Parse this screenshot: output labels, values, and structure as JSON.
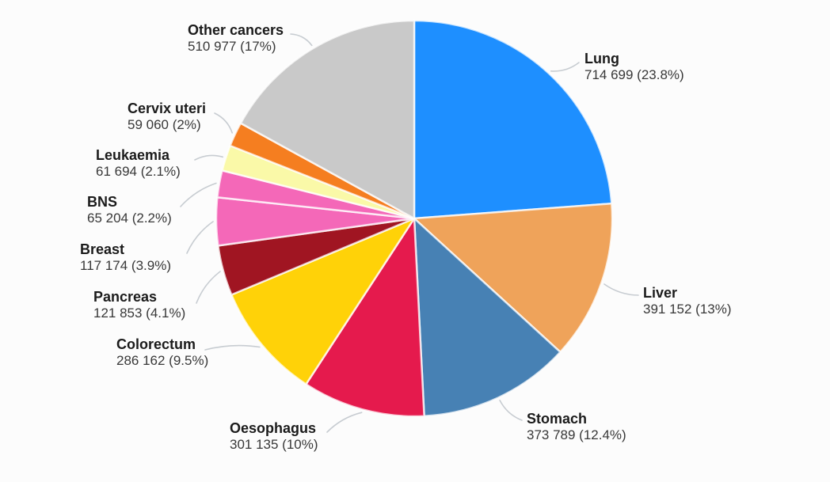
{
  "chart_data": {
    "type": "pie",
    "title": "",
    "start_angle_deg": 0,
    "direction": "clockwise",
    "legend_position": "none",
    "label_format": "name newline count (percent)",
    "slices": [
      {
        "id": "lung",
        "label": "Lung",
        "count": "714 699",
        "pct_display": "23.8%",
        "percent": 23.8,
        "color": "#1E8FFF"
      },
      {
        "id": "liver",
        "label": "Liver",
        "count": "391 152",
        "pct_display": "13%",
        "percent": 13.0,
        "color": "#EFA35A"
      },
      {
        "id": "stomach",
        "label": "Stomach",
        "count": "373 789",
        "pct_display": "12.4%",
        "percent": 12.4,
        "color": "#4781B4"
      },
      {
        "id": "oesophagus",
        "label": "Oesophagus",
        "count": "301 135",
        "pct_display": "10%",
        "percent": 10.0,
        "color": "#E51A4D"
      },
      {
        "id": "colorectum",
        "label": "Colorectum",
        "count": "286 162",
        "pct_display": "9.5%",
        "percent": 9.5,
        "color": "#FFD208"
      },
      {
        "id": "pancreas",
        "label": "Pancreas",
        "count": "121 853",
        "pct_display": "4.1%",
        "percent": 4.1,
        "color": "#A01522"
      },
      {
        "id": "breast",
        "label": "Breast",
        "count": "117 174",
        "pct_display": "3.9%",
        "percent": 3.9,
        "color": "#F468B8"
      },
      {
        "id": "bns",
        "label": "BNS",
        "count": "65 204",
        "pct_display": "2.2%",
        "percent": 2.2,
        "color": "#F468B8"
      },
      {
        "id": "leukaemia",
        "label": "Leukaemia",
        "count": "61 694",
        "pct_display": "2.1%",
        "percent": 2.1,
        "color": "#FAF9A8"
      },
      {
        "id": "cervix-uteri",
        "label": "Cervix uteri",
        "count": "59 060",
        "pct_display": "2%",
        "percent": 2.0,
        "color": "#F57E20"
      },
      {
        "id": "other",
        "label": "Other cancers",
        "count": "510 977",
        "pct_display": "17%",
        "percent": 17.0,
        "color": "#C9C9C9"
      }
    ]
  },
  "colors": {
    "background": "#FCFCFC",
    "label_name_text": "#1b1b1b",
    "label_value_text": "#383838",
    "leader_line": "#c7ccd1",
    "slice_stroke": "rgba(255,255,255,0.75)"
  }
}
